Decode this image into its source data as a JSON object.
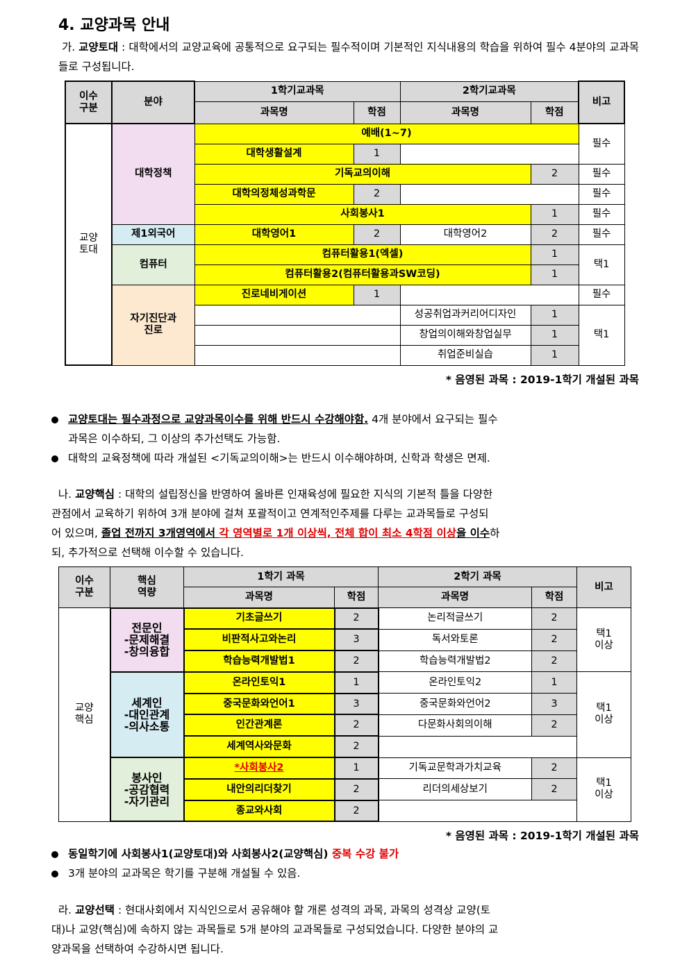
{
  "title": "4. 교양과목 안내",
  "sec_a": {
    "label": "가. ",
    "term": "교양토대",
    "text": " : 대학에서의 교양교육에 공통적으로 요구되는 필수적이며 기본적인 지식내용의 학습을 위하여 필수 4분야의 교과목들로 구성됩니다."
  },
  "t1": {
    "h": {
      "isu": "이수\n구분",
      "field": "분야",
      "sem1": "1학기교과목",
      "sem2": "2학기교과목",
      "name": "과목명",
      "credit": "학점",
      "note": "비고"
    },
    "cat": "교양\n토대",
    "fields": [
      "대학정책",
      "제1외국어",
      "컴퓨터",
      "자기진단과\n진로"
    ],
    "rows": [
      {
        "s1": "예배(1~7)",
        "note": "필수"
      },
      {
        "s1": "대학생활설계",
        "c1": "1"
      },
      {
        "s1": "기독교의이해",
        "c2": "2",
        "note": "필수"
      },
      {
        "s1": "대학의정체성과학문",
        "c1": "2",
        "note": "필수"
      },
      {
        "s1": "사회봉사1",
        "c2": "1",
        "note": "필수"
      },
      {
        "s1": "대학영어1",
        "c1": "2",
        "s2": "대학영어2",
        "c2": "2",
        "note": "필수"
      },
      {
        "s1": "컴퓨터활용1(엑셀)",
        "c2": "1",
        "note": "택1"
      },
      {
        "s1": "컴퓨터활용2(컴퓨터활용과SW코딩)",
        "c2": "1"
      },
      {
        "s1": "진로네비게이션",
        "c1": "1",
        "note": "필수"
      },
      {
        "s2": "성공취업과커리어디자인",
        "c2": "1",
        "note": "택1"
      },
      {
        "s2": "창업의이해와창업실무",
        "c2": "1"
      },
      {
        "s2": "취업준비실습",
        "c2": "1"
      }
    ]
  },
  "note1": "* 음영된 과목 : 2019-1학기 개설된 과목",
  "bullets1": [
    {
      "bold": "교양토대는 필수과정으로 교양과목이수를 위해 반드시 수강해야함.",
      "text": " 4개 분야에서 요구되는 필수",
      "text2": "과목은 이수하되, 그 이상의 추가선택도 가능함."
    },
    {
      "text": "대학의 교육정책에 따라 개설된 <기독교의이해>는 반드시 이수해야하며, 신학과 학생은 면제."
    }
  ],
  "sec_b": {
    "label": "나. ",
    "term": "교양핵심",
    "text1": " : 대학의 설립정신을 반영하여 올바른 인재육성에 필요한 지식의 기본적 틀을 다양한",
    "text2": "관점에서 교육하기 위하여 3개 분야에 걸쳐 포괄적이고 연계적인주제를 다루는 교과목들로 구성되",
    "text3a": "어 있으며, ",
    "bold1": "졸업 전까지 3개영역에서 ",
    "red1": "각 영역별로 1개 이상씩, 전체 합이 최소 4학점 이상",
    "bold2": "을 이수",
    "text3b": "하",
    "text4": "되, 추가적으로 선택해 이수할 수 있습니다."
  },
  "t2": {
    "h": {
      "isu": "이수\n구분",
      "core": "핵심\n역량",
      "sem1": "1학기 과목",
      "sem2": "2학기 과목",
      "name": "과목명",
      "credit": "학점",
      "note": "비고"
    },
    "cat": "교양\n핵심",
    "groups": [
      "전문인\n-문제해결\n-창의융합",
      "세계인\n-대인관계\n-의사소통",
      "봉사인\n-공감협력\n-자기관리"
    ],
    "notes": [
      "택1\n이상",
      "택1\n이상",
      "택1\n이상"
    ],
    "rows": [
      {
        "s1": "기초글쓰기",
        "c1": "2",
        "s2": "논리적글쓰기",
        "c2": "2"
      },
      {
        "s1": "비판적사고와논리",
        "c1": "3",
        "s2": "독서와토론",
        "c2": "2"
      },
      {
        "s1": "학습능력개발법1",
        "c1": "2",
        "s2": "학습능력개발법2",
        "c2": "2"
      },
      {
        "s1": "온라인토익1",
        "c1": "1",
        "s2": "온라인토익2",
        "c2": "1"
      },
      {
        "s1": "중국문화와언어1",
        "c1": "3",
        "s2": "중국문화와언어2",
        "c2": "3"
      },
      {
        "s1": "인간관계론",
        "c1": "2",
        "s2": "다문화사회의이해",
        "c2": "2"
      },
      {
        "s1": "세계역사와문화",
        "c1": "2"
      },
      {
        "s1": "*사회봉사2",
        "c1": "1",
        "s2": "기독교문학과가치교육",
        "c2": "2"
      },
      {
        "s1": "내안의리더찾기",
        "c1": "2",
        "s2": "리더의세상보기",
        "c2": "2"
      },
      {
        "s1": "종교와사회",
        "c1": "2"
      }
    ]
  },
  "note2": "* 음영된 과목 : 2019-1학기 개설된 과목",
  "bullets2": [
    {
      "bold": "동일학기에 사회봉사1(교양토대)와 사회봉사2(교양핵심) ",
      "red": "중복 수강 불가"
    },
    {
      "text": "3개 분야의 교과목은 학기를 구분해 개설될 수 있음."
    }
  ],
  "sec_c": {
    "label": "라. ",
    "term": "교양선택",
    "text1": " : 현대사회에서 지식인으로서 공유해야 할 개론 성격의 과목, 과목의 성격상 교양(토",
    "text2": "대)나 교양(핵심)에 속하지 않는 과목들로 5개 분야의 교과목들로 구성되었습니다. 다양한 분야의 교",
    "text3": "양과목을 선택하여 수강하시면 됩니다."
  },
  "colors": {
    "highlight": "#ffff00",
    "header": "#d9d9d9",
    "red": "#e00000"
  }
}
